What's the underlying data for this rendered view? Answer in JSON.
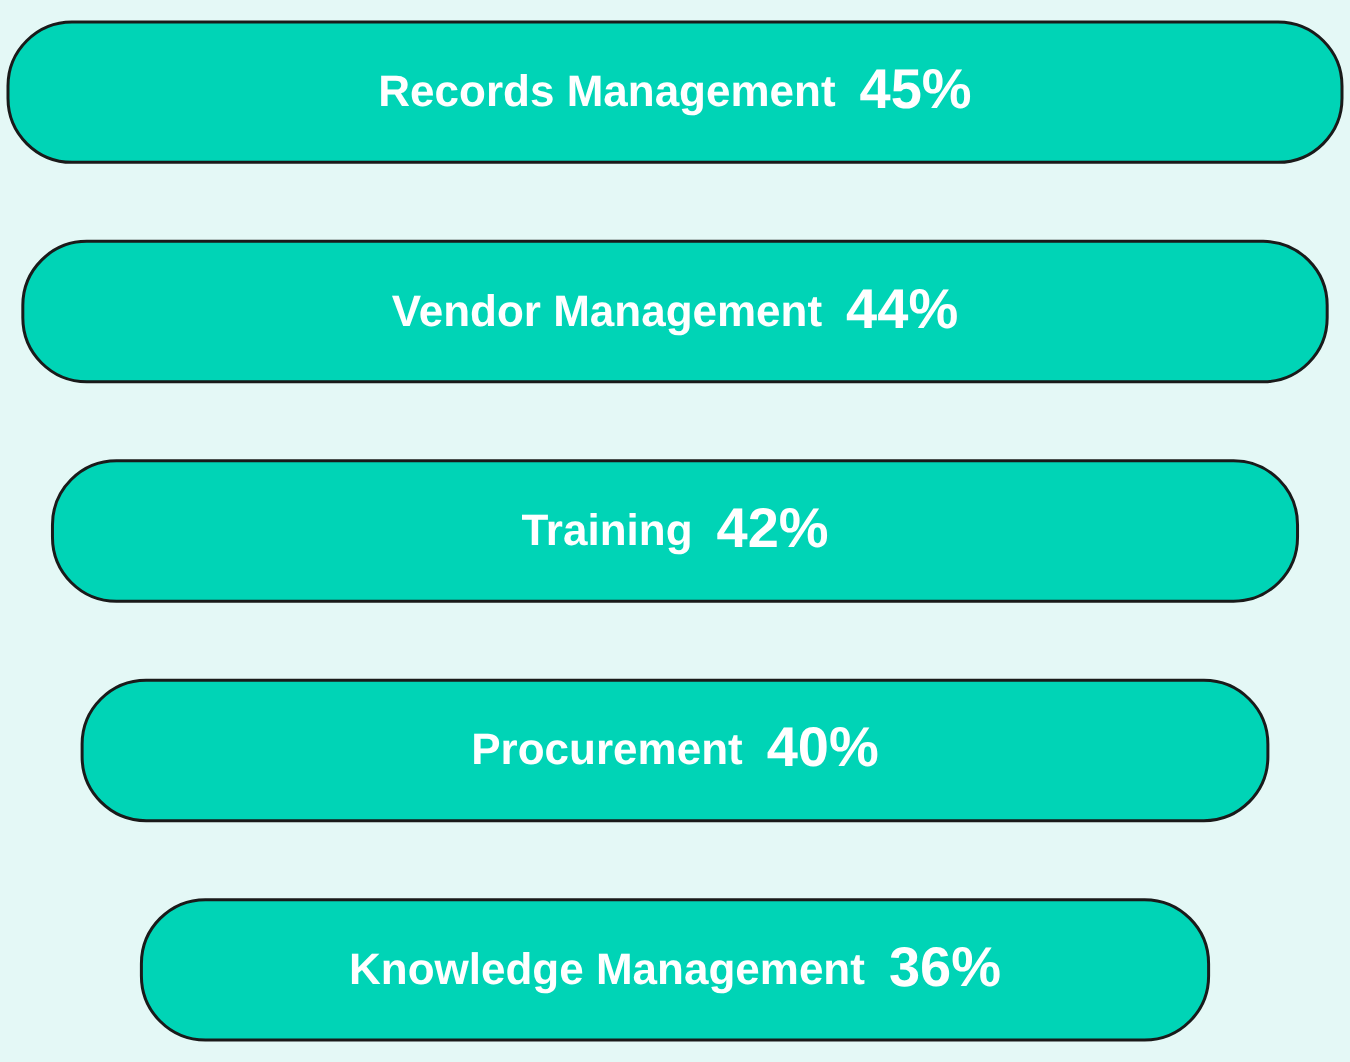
{
  "chart_data": {
    "type": "other",
    "categories": [
      "Records Management",
      "Vendor Management",
      "Training",
      "Procurement",
      "Knowledge Management"
    ],
    "values": [
      45,
      44,
      42,
      40,
      36
    ],
    "value_labels": [
      "45%",
      "44%",
      "42%",
      "40%",
      "36%"
    ],
    "color": "#00d4b6"
  }
}
